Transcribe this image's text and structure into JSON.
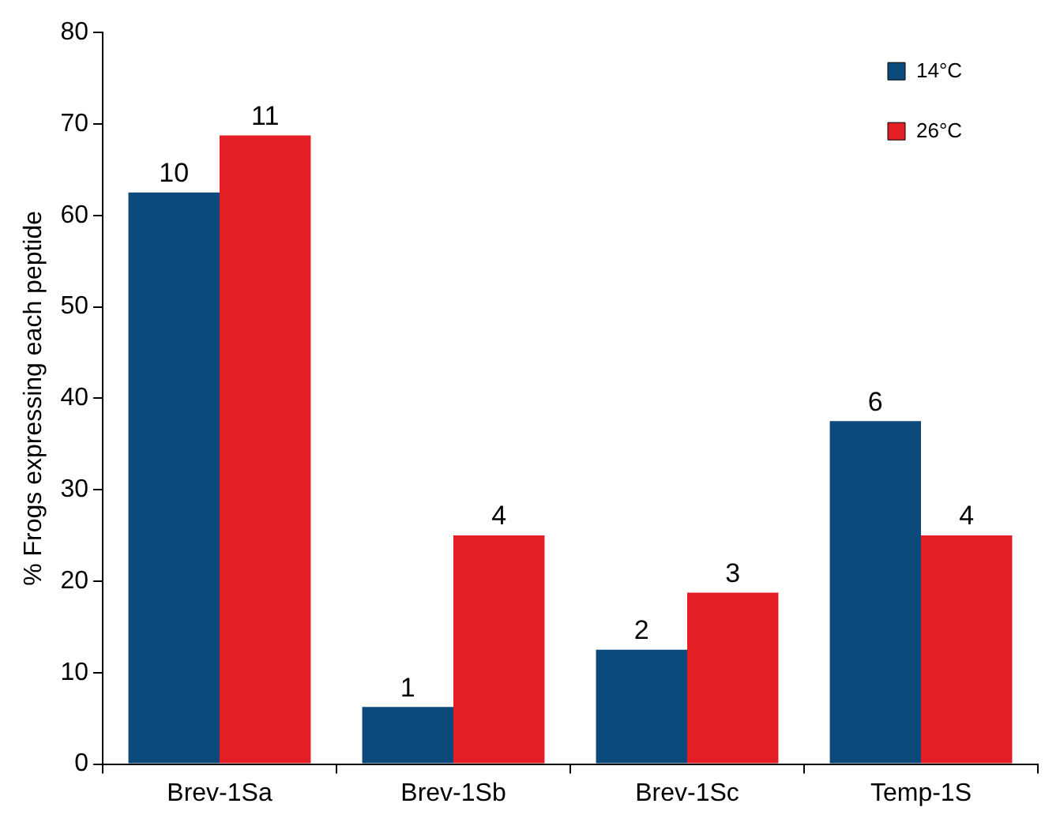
{
  "chart_data": {
    "type": "bar",
    "ylabel": "% Frogs expressing each peptide",
    "categories": [
      "Brev-1Sa",
      "Brev-1Sb",
      "Brev-1Sc",
      "Temp-1S"
    ],
    "series": [
      {
        "name": "14°C",
        "color": "#0d4a7c",
        "values": [
          62.5,
          6.25,
          12.5,
          37.5
        ]
      },
      {
        "name": "26°C",
        "color": "#e31e24",
        "values": [
          68.75,
          25,
          18.75,
          25
        ]
      }
    ],
    "annotations": [
      {
        "text": "10",
        "x": "Brev-1Sa",
        "y": 62.5
      },
      {
        "text": "11",
        "x": "Brev-1Sa",
        "y": 68.75
      },
      {
        "text": "1",
        "x": "Brev-1Sb",
        "y": 6.25
      },
      {
        "text": "4",
        "x": "Brev-1Sb",
        "y": 25
      },
      {
        "text": "2",
        "x": "Brev-1Sc",
        "y": 12.5
      },
      {
        "text": "3",
        "x": "Brev-1Sc",
        "y": 18.75
      },
      {
        "text": "6",
        "x": "Temp-1S",
        "y": 37.5
      },
      {
        "text": "4",
        "x": "Temp-1S",
        "y": 25
      }
    ],
    "ylim": [
      0,
      80
    ],
    "yticks": [
      0,
      10,
      20,
      30,
      40,
      50,
      60,
      70,
      80
    ],
    "grid": false,
    "legend": "top right"
  }
}
